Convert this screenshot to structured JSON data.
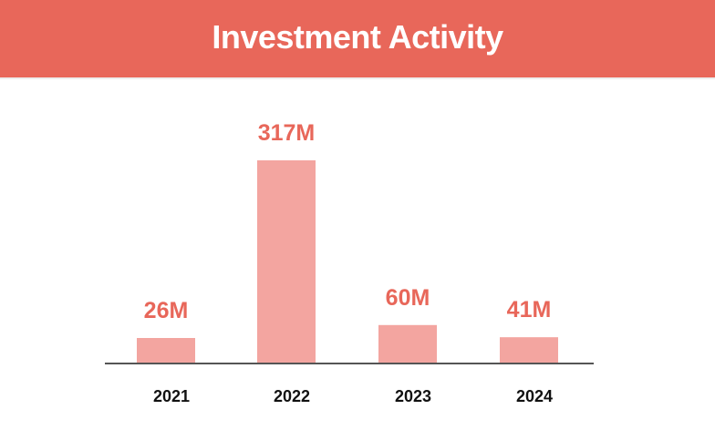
{
  "header": {
    "title": "Investment Activity",
    "background_color": "#e8675a"
  },
  "colors": {
    "bar": "#f3a5a0",
    "value_label": "#e8675a",
    "axis": "#555555"
  },
  "chart_data": {
    "type": "bar",
    "title": "Investment Activity",
    "xlabel": "",
    "ylabel": "",
    "categories": [
      "2021",
      "2022",
      "2023",
      "2024"
    ],
    "values": [
      26,
      317,
      60,
      41
    ],
    "value_labels": [
      "26M",
      "317M",
      "60M",
      "41M"
    ],
    "grid": false,
    "legend": "none"
  }
}
